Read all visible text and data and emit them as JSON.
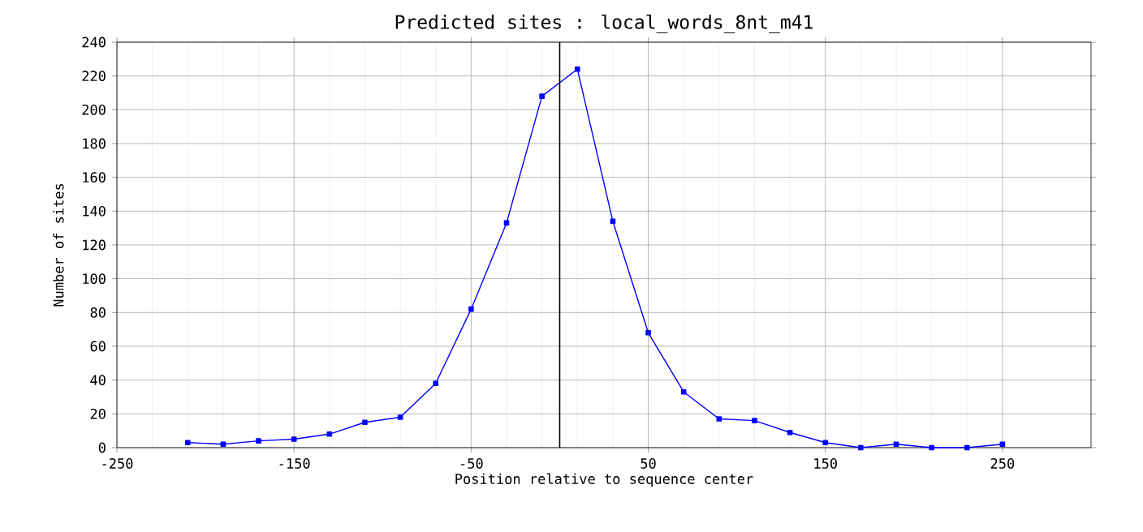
{
  "chart_data": {
    "type": "line",
    "title": "Predicted sites : local_words_8nt_m41",
    "xlabel": "Position relative to sequence center",
    "ylabel": "Number of sites",
    "x": [
      -210,
      -190,
      -170,
      -150,
      -130,
      -110,
      -90,
      -70,
      -50,
      -30,
      -10,
      10,
      30,
      50,
      70,
      90,
      110,
      130,
      150,
      170,
      190,
      210,
      230,
      250
    ],
    "series": [
      {
        "color": "#0000ff",
        "values": [
          3,
          2,
          4,
          5,
          8,
          15,
          18,
          38,
          82,
          133,
          208,
          224,
          134,
          68,
          33,
          17,
          16,
          9,
          3,
          0,
          2,
          0,
          0,
          2
        ]
      }
    ],
    "xlim": [
      -250,
      300
    ],
    "ylim": [
      0,
      240
    ],
    "xticks": [
      -250,
      -150,
      -50,
      50,
      150,
      250
    ],
    "yticks": [
      0,
      20,
      40,
      60,
      80,
      100,
      120,
      140,
      160,
      180,
      200,
      220,
      240
    ],
    "ref_lines": [
      {
        "axis": "x",
        "value": 0,
        "color": "#000000"
      }
    ],
    "grid": true,
    "marker": "square",
    "line_style": "solid"
  }
}
